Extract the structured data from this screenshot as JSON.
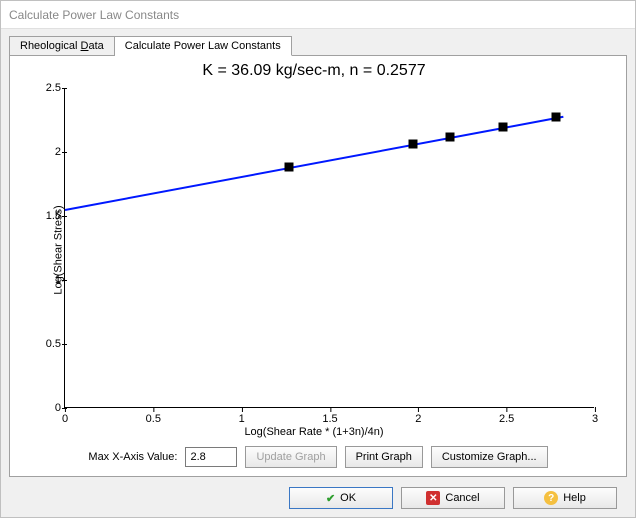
{
  "window": {
    "title": "Calculate Power Law Constants"
  },
  "tabs": {
    "rheological_pre": "Rheological ",
    "rheological_u": "D",
    "rheological_post": "ata",
    "calc": "Calculate Power Law Constants"
  },
  "chart": {
    "type": "scatter+line",
    "title": "K = 36.09 kg/sec-m, n = 0.2577",
    "xlabel": "Log(Shear Rate * (1+3n)/4n)",
    "ylabel": "Log(Shear Stress)",
    "xlim": [
      0,
      3
    ],
    "ylim": [
      0,
      2.5
    ],
    "xticks": [
      0,
      0.5,
      1,
      1.5,
      2,
      2.5,
      3
    ],
    "yticks": [
      0,
      0.5,
      1,
      1.5,
      2,
      2.5
    ],
    "line_color": "#0018ff",
    "line_width": 2,
    "marker_fill": "#000000",
    "marker_size": 9,
    "background": "#ffffff",
    "axis_color": "#000000",
    "fit_line": {
      "x1": 0,
      "y1": 1.557,
      "x2": 2.82,
      "y2": 2.285
    },
    "points": [
      {
        "x": 1.27,
        "y": 1.885
      },
      {
        "x": 1.97,
        "y": 2.065
      },
      {
        "x": 2.18,
        "y": 2.12
      },
      {
        "x": 2.48,
        "y": 2.195
      },
      {
        "x": 2.78,
        "y": 2.27
      }
    ]
  },
  "controls": {
    "max_x_label": "Max X-Axis Value:",
    "max_x_value": "2.8",
    "update": "Update Graph",
    "print": "Print Graph",
    "customize": "Customize Graph..."
  },
  "buttons": {
    "ok": "OK",
    "cancel": "Cancel",
    "help": "Help"
  }
}
